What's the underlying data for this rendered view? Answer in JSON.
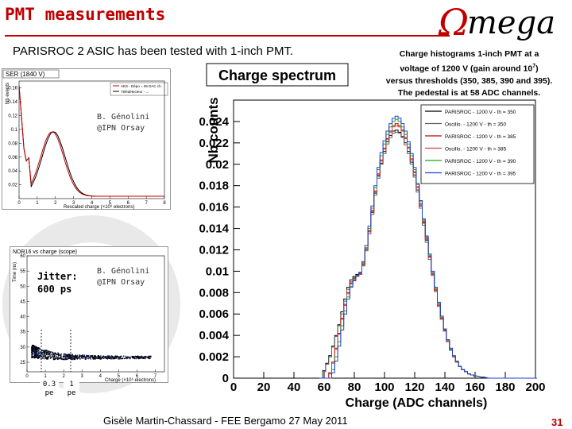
{
  "slide": {
    "title": "PMT measurements",
    "logo_text": "Omega",
    "subtitle": "PARISROC 2 ASIC has been tested with 1-inch PMT.",
    "caption": {
      "line1": "Charge histograms 1-inch PMT at a",
      "line2_prefix": "voltage of 1200 V (gain around 10",
      "line2_sup": "7",
      "line2_suffix": ")",
      "line3": "versus thresholds (350, 385, 390 and 395).",
      "line4": "The pedestal is at 58 ADC channels."
    },
    "footer": "Gisèle Martin-Chassard - FEE Bergamo 27 May 2011",
    "page_number": "31",
    "colors": {
      "title": "#c00000",
      "rule": "#c00000",
      "page_number": "#c00000"
    }
  },
  "inset_ser": {
    "title": "SER (1840 V)",
    "ylabel": "Nb events",
    "xlabel": "Rescaled charge (×10⁶ electrons)",
    "legend": [
      "AES - Dépo = 06 DAC ch.",
      "Télédétecteur - ..."
    ],
    "credit_line1": "B. Génolini",
    "credit_line2": "@IPN Orsay",
    "xticks": [
      "0",
      "1",
      "2",
      "3",
      "4",
      "5",
      "6",
      "7",
      "8"
    ],
    "yticks": [
      "0.02",
      "0.04",
      "0.06",
      "0.08",
      "0.1",
      "0.12",
      "0.14",
      "0.16"
    ]
  },
  "inset_nor": {
    "title": "NOR16 vs charge (scope)",
    "ylabel": "Time (ns)",
    "xlabel": "Charge (×10⁶ electrons)",
    "jitter_line1": "Jitter:",
    "jitter_line2": "600 ps",
    "credit_line1": "B. Génolini",
    "credit_line2": "@IPN Orsay",
    "xticks": [
      "0",
      "1",
      "2",
      "3",
      "4",
      "5",
      "6",
      "7"
    ],
    "yticks": [
      "25",
      "30",
      "35",
      "40",
      "45",
      "50",
      "55",
      "60"
    ],
    "pe_marks": [
      {
        "value": "0.3",
        "unit": "pe"
      },
      {
        "value": "1",
        "unit": "pe"
      }
    ]
  },
  "chart_data": {
    "type": "line",
    "title": "Charge spectrum",
    "xlabel": "Charge (ADC channels)",
    "ylabel": "Nb counts",
    "xlim": [
      0,
      200
    ],
    "ylim": [
      0,
      0.026
    ],
    "xticks": [
      0,
      20,
      40,
      60,
      80,
      100,
      120,
      140,
      160,
      180,
      200
    ],
    "yticks": [
      0,
      0.002,
      0.004,
      0.006,
      0.008,
      0.01,
      0.012,
      0.014,
      0.016,
      0.018,
      0.02,
      0.022,
      0.024
    ],
    "legend_position": "top-right",
    "x": [
      58,
      60,
      62,
      64,
      66,
      68,
      70,
      72,
      74,
      76,
      78,
      80,
      82,
      84,
      86,
      88,
      90,
      92,
      94,
      96,
      98,
      100,
      102,
      104,
      106,
      108,
      110,
      112,
      114,
      116,
      118,
      120,
      122,
      124,
      126,
      128,
      130,
      132,
      134,
      136,
      138,
      140,
      142,
      144,
      146,
      148,
      150,
      152,
      154,
      156,
      158,
      160,
      165,
      170,
      175,
      180,
      190,
      200
    ],
    "series": [
      {
        "name": "PARISROC - 1200 V - th = 350",
        "color": "#000000",
        "values": [
          0,
          0.0007,
          0.0014,
          0.0021,
          0.003,
          0.004,
          0.005,
          0.0062,
          0.0074,
          0.0085,
          0.0092,
          0.0095,
          0.0097,
          0.0098,
          0.0106,
          0.012,
          0.0137,
          0.0155,
          0.0173,
          0.0189,
          0.0201,
          0.0212,
          0.0221,
          0.0227,
          0.0231,
          0.0232,
          0.023,
          0.0226,
          0.022,
          0.0212,
          0.0202,
          0.019,
          0.0176,
          0.0161,
          0.0145,
          0.0129,
          0.0113,
          0.0097,
          0.0082,
          0.0068,
          0.0056,
          0.0045,
          0.0035,
          0.0027,
          0.002,
          0.0015,
          0.0011,
          0.0008,
          0.0006,
          0.0004,
          0.0003,
          0.0002,
          0.0001,
          0,
          0,
          0,
          0,
          0
        ]
      },
      {
        "name": "Oscillo. - 1200 V - th = 350",
        "color": "#606060",
        "values": [
          0,
          0.0006,
          0.0013,
          0.002,
          0.0029,
          0.0039,
          0.0049,
          0.006,
          0.0072,
          0.0083,
          0.009,
          0.0094,
          0.0096,
          0.0097,
          0.0105,
          0.0119,
          0.0135,
          0.0153,
          0.0171,
          0.0187,
          0.02,
          0.021,
          0.0219,
          0.0225,
          0.0229,
          0.023,
          0.0229,
          0.0225,
          0.0218,
          0.021,
          0.02,
          0.0188,
          0.0174,
          0.0159,
          0.0143,
          0.0127,
          0.0111,
          0.0096,
          0.0081,
          0.0067,
          0.0055,
          0.0044,
          0.0034,
          0.0026,
          0.002,
          0.0015,
          0.0011,
          0.0008,
          0.0006,
          0.0004,
          0.0003,
          0.0002,
          0.0001,
          0,
          0,
          0,
          0,
          0
        ]
      },
      {
        "name": "PARISROC - 1200 V - th = 385",
        "color": "#c00000",
        "values": [
          0,
          0,
          0,
          0.0005,
          0.0015,
          0.0028,
          0.0042,
          0.0056,
          0.0069,
          0.008,
          0.0089,
          0.0093,
          0.0096,
          0.0098,
          0.0107,
          0.0121,
          0.0138,
          0.0157,
          0.0175,
          0.0191,
          0.0204,
          0.0215,
          0.0224,
          0.0231,
          0.0236,
          0.0238,
          0.0236,
          0.0232,
          0.0225,
          0.0216,
          0.0205,
          0.0193,
          0.0179,
          0.0163,
          0.0147,
          0.0131,
          0.0114,
          0.0098,
          0.0083,
          0.0069,
          0.0056,
          0.0045,
          0.0035,
          0.0027,
          0.002,
          0.0015,
          0.0011,
          0.0008,
          0.0006,
          0.0004,
          0.0003,
          0.0002,
          0.0001,
          0,
          0,
          0,
          0,
          0
        ]
      },
      {
        "name": "Oscillo. - 1200 V - th = 385",
        "color": "#d04040",
        "values": [
          0,
          0,
          0,
          0.0004,
          0.0014,
          0.0027,
          0.0041,
          0.0055,
          0.0068,
          0.0079,
          0.0088,
          0.0092,
          0.0095,
          0.0097,
          0.0106,
          0.012,
          0.0137,
          0.0156,
          0.0174,
          0.019,
          0.0203,
          0.0214,
          0.0223,
          0.023,
          0.0235,
          0.0236,
          0.0235,
          0.0231,
          0.0224,
          0.0215,
          0.0204,
          0.0192,
          0.0178,
          0.0162,
          0.0146,
          0.013,
          0.0113,
          0.0097,
          0.0082,
          0.0068,
          0.0055,
          0.0044,
          0.0035,
          0.0027,
          0.002,
          0.0015,
          0.0011,
          0.0008,
          0.0006,
          0.0004,
          0.0003,
          0.0002,
          0.0001,
          0,
          0,
          0,
          0,
          0
        ]
      },
      {
        "name": "PARISROC - 1200 V - th = 390",
        "color": "#20a020",
        "values": [
          0,
          0,
          0,
          0,
          0.0008,
          0.002,
          0.0034,
          0.0049,
          0.0063,
          0.0076,
          0.0086,
          0.0092,
          0.0096,
          0.0099,
          0.0108,
          0.0122,
          0.014,
          0.0159,
          0.0178,
          0.0195,
          0.0208,
          0.0219,
          0.0228,
          0.0235,
          0.024,
          0.0242,
          0.024,
          0.0235,
          0.0228,
          0.0219,
          0.0208,
          0.0195,
          0.0181,
          0.0165,
          0.0148,
          0.0132,
          0.0115,
          0.0099,
          0.0084,
          0.007,
          0.0057,
          0.0046,
          0.0036,
          0.0027,
          0.0021,
          0.0015,
          0.0011,
          0.0008,
          0.0006,
          0.0004,
          0.0003,
          0.0002,
          0.0001,
          0,
          0,
          0,
          0,
          0
        ]
      },
      {
        "name": "PARISROC - 1200 V - th = 395",
        "color": "#2040d0",
        "values": [
          0,
          0,
          0,
          0,
          0.0005,
          0.0016,
          0.003,
          0.0045,
          0.006,
          0.0074,
          0.0085,
          0.0091,
          0.0096,
          0.0099,
          0.0109,
          0.0124,
          0.0142,
          0.0161,
          0.018,
          0.0197,
          0.0211,
          0.0222,
          0.0231,
          0.0238,
          0.0243,
          0.0245,
          0.0243,
          0.0238,
          0.0231,
          0.0221,
          0.021,
          0.0197,
          0.0182,
          0.0166,
          0.0149,
          0.0133,
          0.0116,
          0.01,
          0.0085,
          0.0071,
          0.0058,
          0.0046,
          0.0036,
          0.0028,
          0.0021,
          0.0016,
          0.0011,
          0.0008,
          0.0006,
          0.0004,
          0.0003,
          0.0002,
          0.0001,
          0,
          0,
          0,
          0,
          0
        ]
      }
    ]
  }
}
